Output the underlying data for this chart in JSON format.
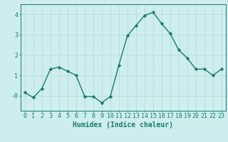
{
  "x": [
    0,
    1,
    2,
    3,
    4,
    5,
    6,
    7,
    8,
    9,
    10,
    11,
    12,
    13,
    14,
    15,
    16,
    17,
    18,
    19,
    20,
    21,
    22,
    23
  ],
  "y": [
    0.15,
    -0.1,
    0.35,
    1.3,
    1.4,
    1.2,
    1.0,
    -0.05,
    -0.05,
    -0.35,
    -0.05,
    1.5,
    2.95,
    3.45,
    3.95,
    4.1,
    3.55,
    3.05,
    2.25,
    1.85,
    1.3,
    1.3,
    1.0,
    1.3
  ],
  "line_color": "#1a7a6e",
  "marker": "D",
  "markersize": 2.2,
  "linewidth": 1.0,
  "bg_color": "#cdeeed",
  "grid_color": "#b8dcd9",
  "axis_color": "#1a7a6e",
  "xlabel": "Humidex (Indice chaleur)",
  "xlabel_fontsize": 7,
  "tick_fontsize": 6,
  "ylim": [
    -0.75,
    4.5
  ],
  "xlim": [
    -0.5,
    23.5
  ]
}
